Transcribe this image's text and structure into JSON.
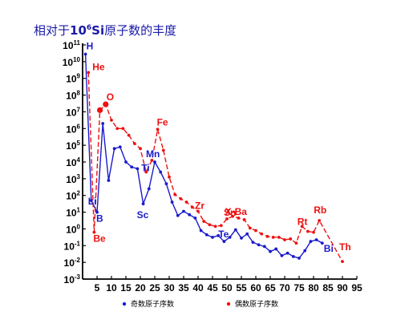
{
  "chart_data": {
    "type": "line",
    "title": {
      "prefix": "相对于",
      "base": "10",
      "exp": "6",
      "element": "Si",
      "suffix": "原子数的丰度"
    },
    "y_axis": {
      "scale": "log10",
      "range_exp": [
        -3,
        11
      ],
      "tick_exponents": [
        -3,
        -2,
        -1,
        0,
        1,
        2,
        3,
        4,
        5,
        6,
        7,
        8,
        9,
        10,
        11
      ],
      "tick_base": "10"
    },
    "x_axis": {
      "range": [
        0,
        95
      ],
      "ticks": [
        5,
        10,
        15,
        20,
        25,
        30,
        35,
        40,
        45,
        50,
        55,
        60,
        65,
        70,
        75,
        80,
        85,
        90,
        95
      ],
      "tick_labels": [
        "5",
        "10",
        "15",
        "20",
        "25",
        "30",
        "35",
        "40",
        "45",
        "50",
        "55",
        "60",
        "65",
        "70",
        "75",
        "80",
        "85",
        "90",
        "95"
      ]
    },
    "series": [
      {
        "name": "奇数原子序数",
        "color": "#1a1acc",
        "line_style": "solid",
        "points": [
          [
            1,
            10.45
          ],
          [
            3,
            1.7
          ],
          [
            5,
            1.0
          ],
          [
            7,
            6.3
          ],
          [
            9,
            2.9
          ],
          [
            11,
            4.8
          ],
          [
            13,
            4.9
          ],
          [
            15,
            4.0
          ],
          [
            17,
            3.7
          ],
          [
            19,
            3.6
          ],
          [
            21,
            1.5
          ],
          [
            23,
            2.4
          ],
          [
            25,
            4.0
          ],
          [
            27,
            3.4
          ],
          [
            29,
            2.7
          ],
          [
            31,
            1.6
          ],
          [
            33,
            0.8
          ],
          [
            35,
            1.05
          ],
          [
            37,
            0.85
          ],
          [
            39,
            0.65
          ],
          [
            41,
            -0.1
          ],
          [
            43,
            -0.35
          ],
          [
            45,
            -0.5
          ],
          [
            47,
            -0.4
          ],
          [
            49,
            -0.75
          ],
          [
            51,
            -0.5
          ],
          [
            53,
            -0.05
          ],
          [
            55,
            -0.55
          ],
          [
            57,
            -0.3
          ],
          [
            59,
            -0.8
          ],
          [
            61,
            -0.95
          ],
          [
            63,
            -1.05
          ],
          [
            65,
            -1.35
          ],
          [
            67,
            -1.2
          ],
          [
            69,
            -1.6
          ],
          [
            71,
            -1.45
          ],
          [
            73,
            -1.65
          ],
          [
            75,
            -1.75
          ],
          [
            77,
            -1.3
          ],
          [
            79,
            -0.75
          ],
          [
            81,
            -0.65
          ],
          [
            83,
            -0.85
          ]
        ]
      },
      {
        "name": "偶数原子序数",
        "color": "#ee1111",
        "line_style": "dashed",
        "points": [
          [
            2,
            9.35
          ],
          [
            4,
            -0.2
          ],
          [
            6,
            7.1
          ],
          [
            8,
            7.45
          ],
          [
            10,
            6.5
          ],
          [
            12,
            6.0
          ],
          [
            14,
            6.0
          ],
          [
            16,
            5.6
          ],
          [
            18,
            5.1
          ],
          [
            20,
            4.8
          ],
          [
            22,
            3.4
          ],
          [
            24,
            4.1
          ],
          [
            26,
            5.95
          ],
          [
            28,
            4.7
          ],
          [
            30,
            3.1
          ],
          [
            32,
            2.05
          ],
          [
            34,
            1.8
          ],
          [
            36,
            1.6
          ],
          [
            38,
            1.3
          ],
          [
            40,
            1.05
          ],
          [
            42,
            0.45
          ],
          [
            44,
            0.25
          ],
          [
            46,
            0.15
          ],
          [
            48,
            0.2
          ],
          [
            50,
            0.6
          ],
          [
            52,
            0.75
          ],
          [
            54,
            0.65
          ],
          [
            56,
            0.55
          ],
          [
            58,
            0.05
          ],
          [
            60,
            -0.1
          ],
          [
            62,
            -0.3
          ],
          [
            64,
            -0.45
          ],
          [
            66,
            -0.5
          ],
          [
            68,
            -0.5
          ],
          [
            70,
            -0.65
          ],
          [
            72,
            -0.6
          ],
          [
            74,
            -0.85
          ],
          [
            76,
            0.15
          ],
          [
            78,
            -0.15
          ],
          [
            80,
            -0.2
          ],
          [
            82,
            0.5
          ],
          [
            90,
            -1.95
          ]
        ]
      }
    ],
    "annotations": [
      {
        "text": "H",
        "x": 1,
        "color": "#1a1acc"
      },
      {
        "text": "He",
        "x": 2,
        "color": "#ee1111"
      },
      {
        "text": "Li",
        "x": 3,
        "color": "#1a1acc"
      },
      {
        "text": "Be",
        "x": 4,
        "color": "#ee1111"
      },
      {
        "text": "B",
        "x": 5,
        "color": "#1a1acc"
      },
      {
        "text": "O",
        "x": 8,
        "color": "#ee1111"
      },
      {
        "text": "Ti",
        "x": 22,
        "color": "#1a1acc"
      },
      {
        "text": "Sc",
        "x": 21,
        "color": "#1a1acc"
      },
      {
        "text": "Mn",
        "x": 25,
        "color": "#1a1acc"
      },
      {
        "text": "Fe",
        "x": 26,
        "color": "#ee1111"
      },
      {
        "text": "Zr",
        "x": 40,
        "color": "#ee1111"
      },
      {
        "text": "Sn",
        "x": 50,
        "color": "#ee1111"
      },
      {
        "text": "Te",
        "x": 52,
        "color": "#1a1acc"
      },
      {
        "text": "X-Ba",
        "x": 56,
        "color": "#ee1111"
      },
      {
        "text": "Rt",
        "x": 78,
        "color": "#ee1111"
      },
      {
        "text": "Rb",
        "x": 82,
        "color": "#ee1111"
      },
      {
        "text": "Bi",
        "x": 83,
        "color": "#1a1acc"
      },
      {
        "text": "Th",
        "x": 90,
        "color": "#ee1111"
      }
    ],
    "legend": {
      "placement": "bottom",
      "entries": [
        "奇数原子序数",
        "偶数原子序数"
      ]
    },
    "grid": false
  }
}
